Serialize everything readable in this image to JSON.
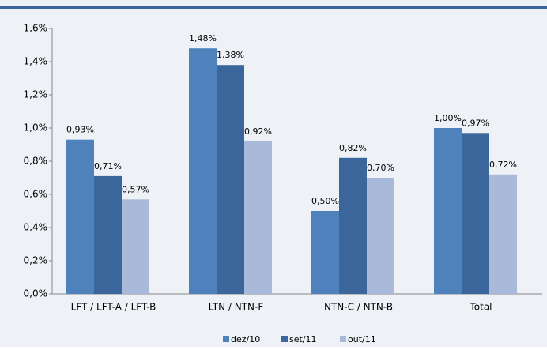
{
  "chart_data": {
    "type": "bar",
    "categories": [
      "LFT / LFT-A / LFT-B",
      "LTN / NTN-F",
      "NTN-C / NTN-B",
      "Total"
    ],
    "series": [
      {
        "name": "dez/10",
        "color": "#4f81bd",
        "values": [
          0.93,
          1.48,
          0.5,
          1.0
        ],
        "value_labels": [
          "0,93%",
          "1,48%",
          "0,50%",
          "1,00%"
        ]
      },
      {
        "name": "set/11",
        "color": "#3b669b",
        "values": [
          0.71,
          1.38,
          0.82,
          0.97
        ],
        "value_labels": [
          "0,71%",
          "1,38%",
          "0,82%",
          "0,97%"
        ]
      },
      {
        "name": "out/11",
        "color": "#a9b9da",
        "values": [
          0.57,
          0.92,
          0.7,
          0.72
        ],
        "value_labels": [
          "0,57%",
          "0,92%",
          "0,70%",
          "0,72%"
        ]
      }
    ],
    "ylim": [
      0,
      1.6
    ],
    "yticks": [
      {
        "value": 0,
        "label": "0,0%"
      },
      {
        "value": 0.2,
        "label": "0,2%"
      },
      {
        "value": 0.4,
        "label": "0,4%"
      },
      {
        "value": 0.6,
        "label": "0,6%"
      },
      {
        "value": 0.8,
        "label": "0,8%"
      },
      {
        "value": 1.0,
        "label": "1,0%"
      },
      {
        "value": 1.2,
        "label": "1,2%"
      },
      {
        "value": 1.4,
        "label": "1,4%"
      },
      {
        "value": 1.6,
        "label": "1,6%"
      }
    ],
    "grid": false,
    "legend": "bottom"
  }
}
